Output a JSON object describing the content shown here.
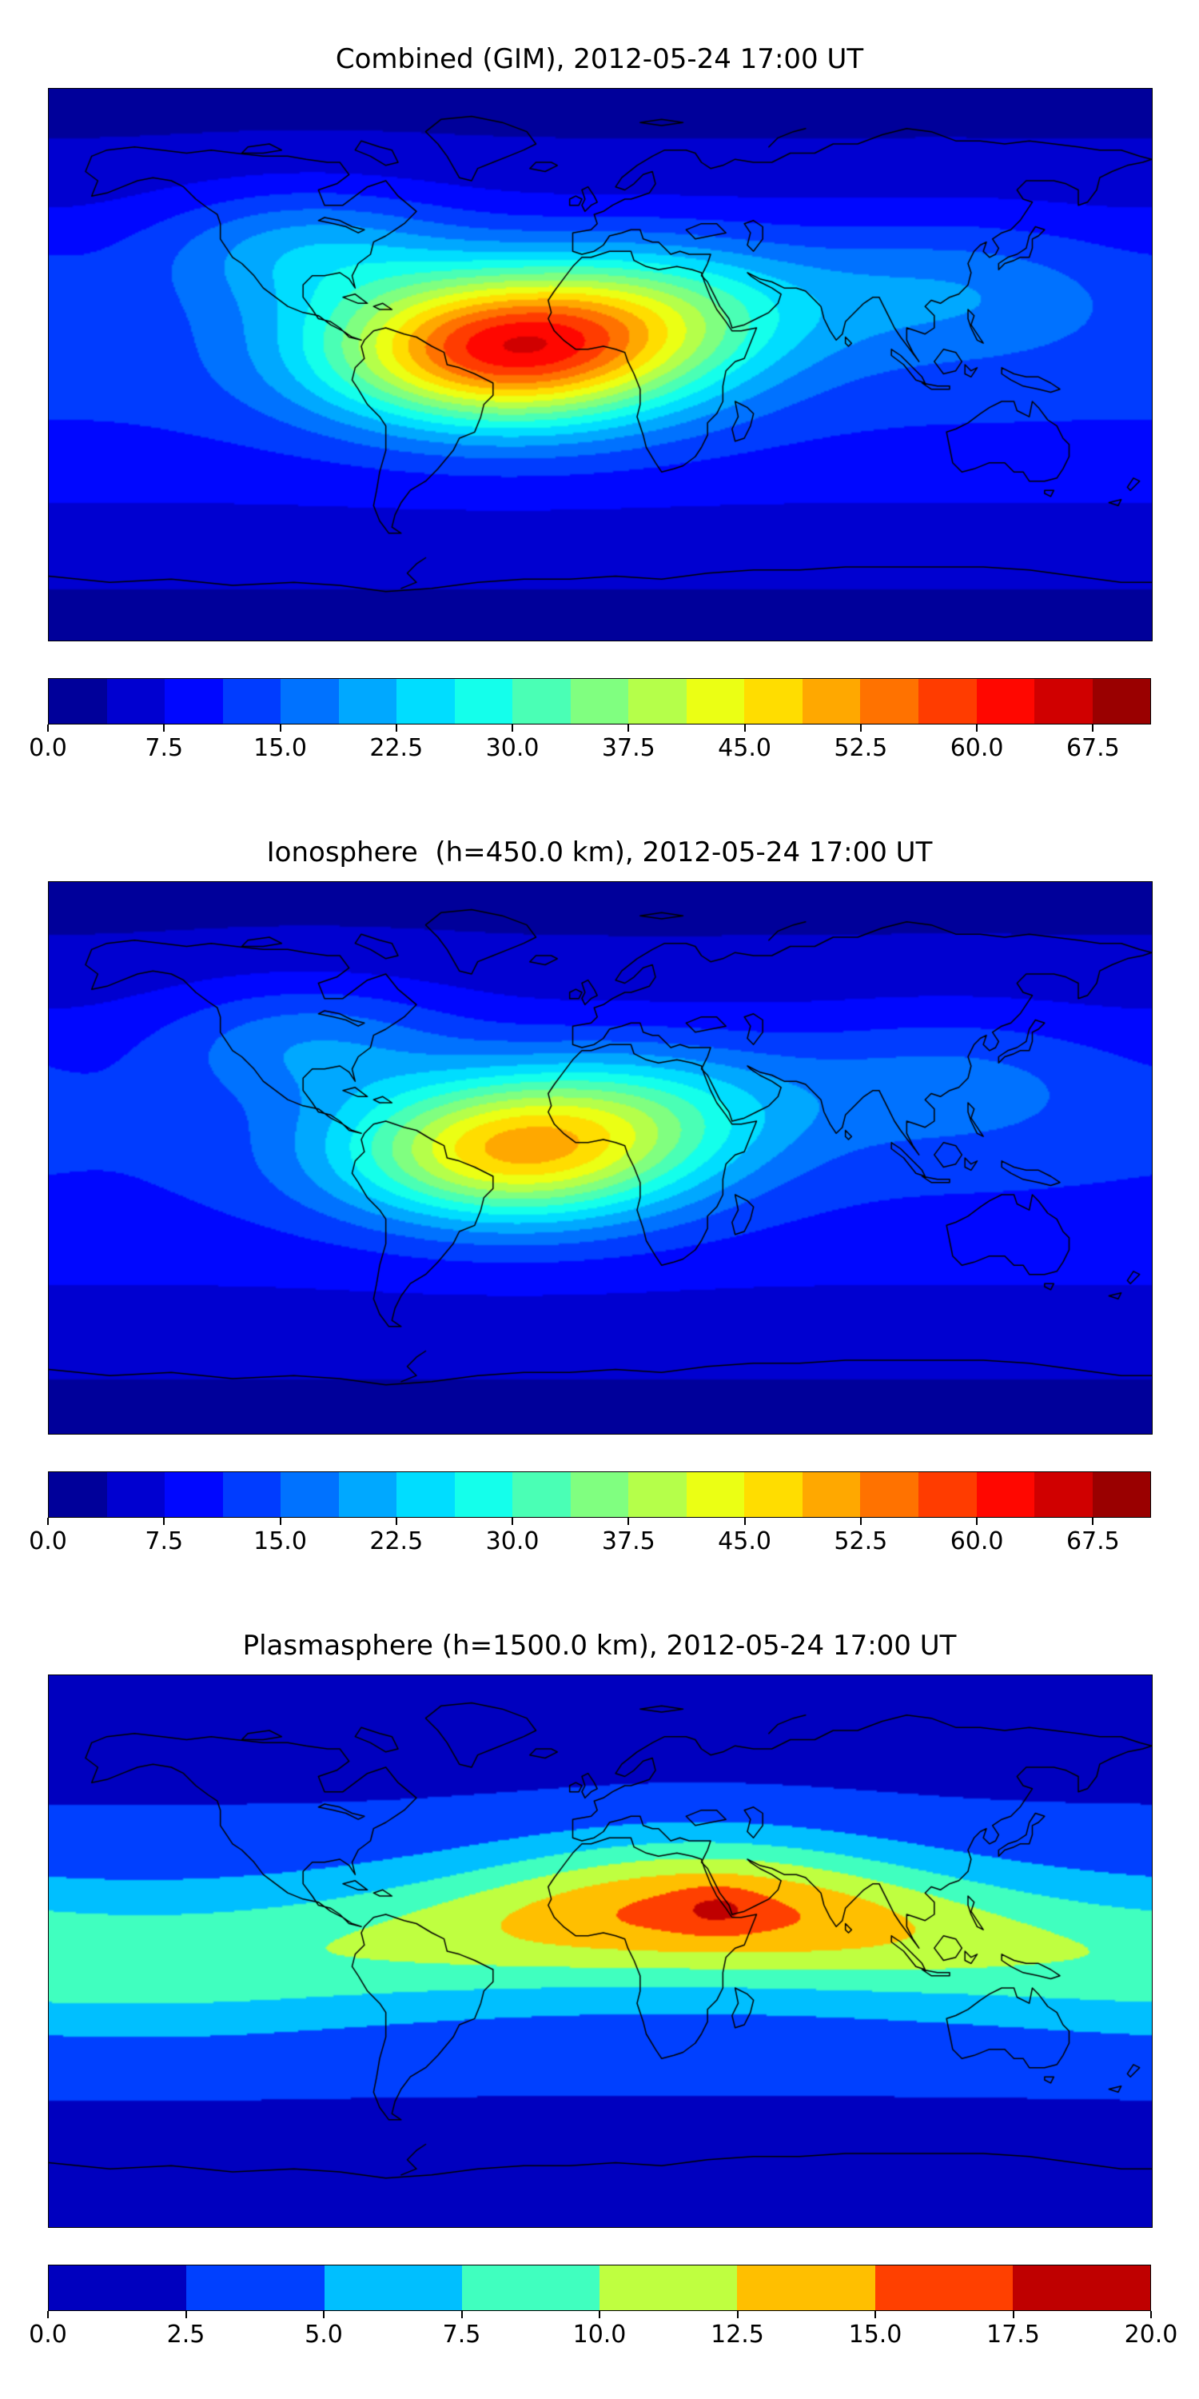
{
  "figure": {
    "background": "#ffffff",
    "colormap": "jet",
    "accent_dark_red": "#800000",
    "accent_dark_blue": "#00008f"
  },
  "chart_data": [
    {
      "type": "heatmap",
      "subtype": "filled-contour-world-map",
      "title": "Combined (GIM), 2012-05-24 17:00 UT",
      "projection": "equirectangular",
      "lon_range": [
        -180,
        180
      ],
      "lat_range": [
        -90,
        90
      ],
      "colormap": "jet",
      "vmin": 0,
      "vmax": 71.25,
      "nbins": 19,
      "level_step": 3.75,
      "peak": {
        "value": 64,
        "lon": -30,
        "lat": 5
      },
      "field": {
        "model": "blobs",
        "base_a": 3,
        "base_b": 9,
        "blobs": [
          {
            "lon": -30,
            "lat": 5,
            "amp": 48,
            "slon": 42,
            "slat": 17
          },
          {
            "lon": 20,
            "lat": 20,
            "amp": 14,
            "slon": 38,
            "slat": 16
          },
          {
            "lon": -95,
            "lat": 38,
            "amp": 12,
            "slon": 35,
            "slat": 14
          },
          {
            "lon": 115,
            "lat": 25,
            "amp": 8,
            "slon": 40,
            "slat": 16
          }
        ]
      },
      "colorbar_ticks": [
        {
          "v": 0,
          "label": "0.0"
        },
        {
          "v": 7.5,
          "label": "7.5"
        },
        {
          "v": 15,
          "label": "15.0"
        },
        {
          "v": 22.5,
          "label": "22.5"
        },
        {
          "v": 30,
          "label": "30.0"
        },
        {
          "v": 37.5,
          "label": "37.5"
        },
        {
          "v": 45,
          "label": "45.0"
        },
        {
          "v": 52.5,
          "label": "52.5"
        },
        {
          "v": 60,
          "label": "60.0"
        },
        {
          "v": 67.5,
          "label": "67.5"
        }
      ]
    },
    {
      "type": "heatmap",
      "subtype": "filled-contour-world-map",
      "title": "Ionosphere  (h=450.0 km), 2012-05-24 17:00 UT",
      "projection": "equirectangular",
      "lon_range": [
        -180,
        180
      ],
      "lat_range": [
        -90,
        90
      ],
      "colormap": "jet",
      "vmin": 0,
      "vmax": 71.25,
      "nbins": 19,
      "level_step": 3.75,
      "peak": {
        "value": 51,
        "lon": -28,
        "lat": 2
      },
      "field": {
        "model": "blobs",
        "base_a": 3,
        "base_b": 8,
        "blobs": [
          {
            "lon": -28,
            "lat": 2,
            "amp": 36,
            "slon": 40,
            "slat": 16
          },
          {
            "lon": 15,
            "lat": 18,
            "amp": 12,
            "slon": 38,
            "slat": 15
          },
          {
            "lon": -95,
            "lat": 38,
            "amp": 10,
            "slon": 35,
            "slat": 14
          },
          {
            "lon": 115,
            "lat": 25,
            "amp": 7,
            "slon": 40,
            "slat": 16
          }
        ]
      },
      "colorbar_ticks": [
        {
          "v": 0,
          "label": "0.0"
        },
        {
          "v": 7.5,
          "label": "7.5"
        },
        {
          "v": 15,
          "label": "15.0"
        },
        {
          "v": 22.5,
          "label": "22.5"
        },
        {
          "v": 30,
          "label": "30.0"
        },
        {
          "v": 37.5,
          "label": "37.5"
        },
        {
          "v": 45,
          "label": "45.0"
        },
        {
          "v": 52.5,
          "label": "52.5"
        },
        {
          "v": 60,
          "label": "60.0"
        },
        {
          "v": 67.5,
          "label": "67.5"
        }
      ]
    },
    {
      "type": "heatmap",
      "subtype": "filled-contour-world-map",
      "title": "Plasmasphere (h=1500.0 km), 2012-05-24 17:00 UT",
      "projection": "equirectangular",
      "lon_range": [
        -180,
        180
      ],
      "lat_range": [
        -90,
        90
      ],
      "colormap": "jet",
      "vmin": 0,
      "vmax": 20,
      "nbins": 8,
      "level_step": 2.5,
      "peak": {
        "value": 18,
        "lon": 38,
        "lat": 14
      },
      "field": {
        "model": "band",
        "base_a": 1.2,
        "base_b": 2.8,
        "band": {
          "amp0": 5.5,
          "amp1": 6.5,
          "amp_lon": 35,
          "amp_sig": 55,
          "c0": 5,
          "c1": 8,
          "c_lon": 30,
          "sigma": 16
        },
        "blobs": [
          {
            "lon": 38,
            "lat": 14,
            "amp": 2.4,
            "slon": 9,
            "slat": 5
          }
        ]
      },
      "colorbar_ticks": [
        {
          "v": 0,
          "label": "0.0"
        },
        {
          "v": 2.5,
          "label": "2.5"
        },
        {
          "v": 5,
          "label": "5.0"
        },
        {
          "v": 7.5,
          "label": "7.5"
        },
        {
          "v": 10,
          "label": "10.0"
        },
        {
          "v": 12.5,
          "label": "12.5"
        },
        {
          "v": 15,
          "label": "15.0"
        },
        {
          "v": 17.5,
          "label": "17.5"
        },
        {
          "v": 20,
          "label": "20.0"
        }
      ]
    }
  ]
}
